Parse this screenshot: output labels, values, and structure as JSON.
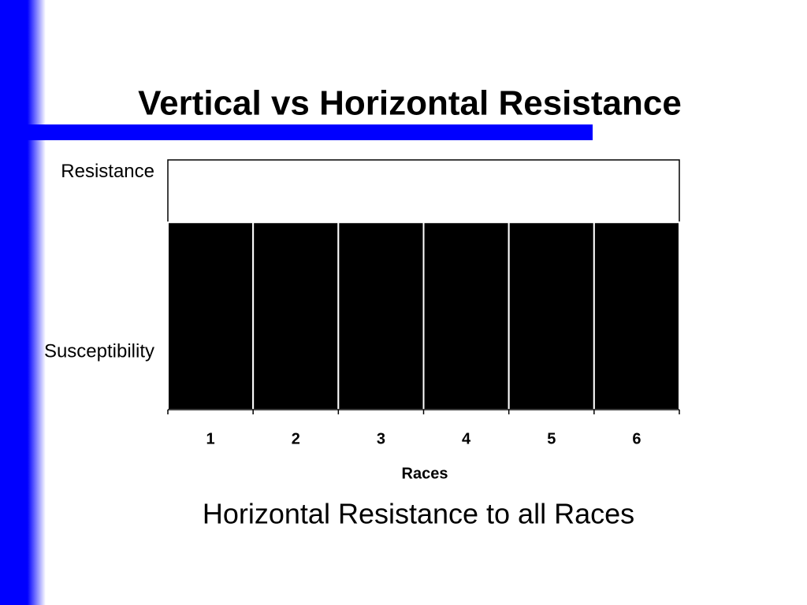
{
  "chart_data": {
    "type": "bar",
    "title": "Vertical vs Horizontal Resistance",
    "caption": "Horizontal Resistance to all Races",
    "x_label": "Races",
    "categories": [
      "1",
      "2",
      "3",
      "4",
      "5",
      "6"
    ],
    "values": [
      75,
      75,
      75,
      75,
      75,
      75
    ],
    "color": "#000000",
    "ylim": [
      0,
      100
    ],
    "yticks": [
      {
        "value": 95,
        "label": "Resistance"
      },
      {
        "value": 23,
        "label": "Susceptibility"
      }
    ],
    "grid": false
  }
}
